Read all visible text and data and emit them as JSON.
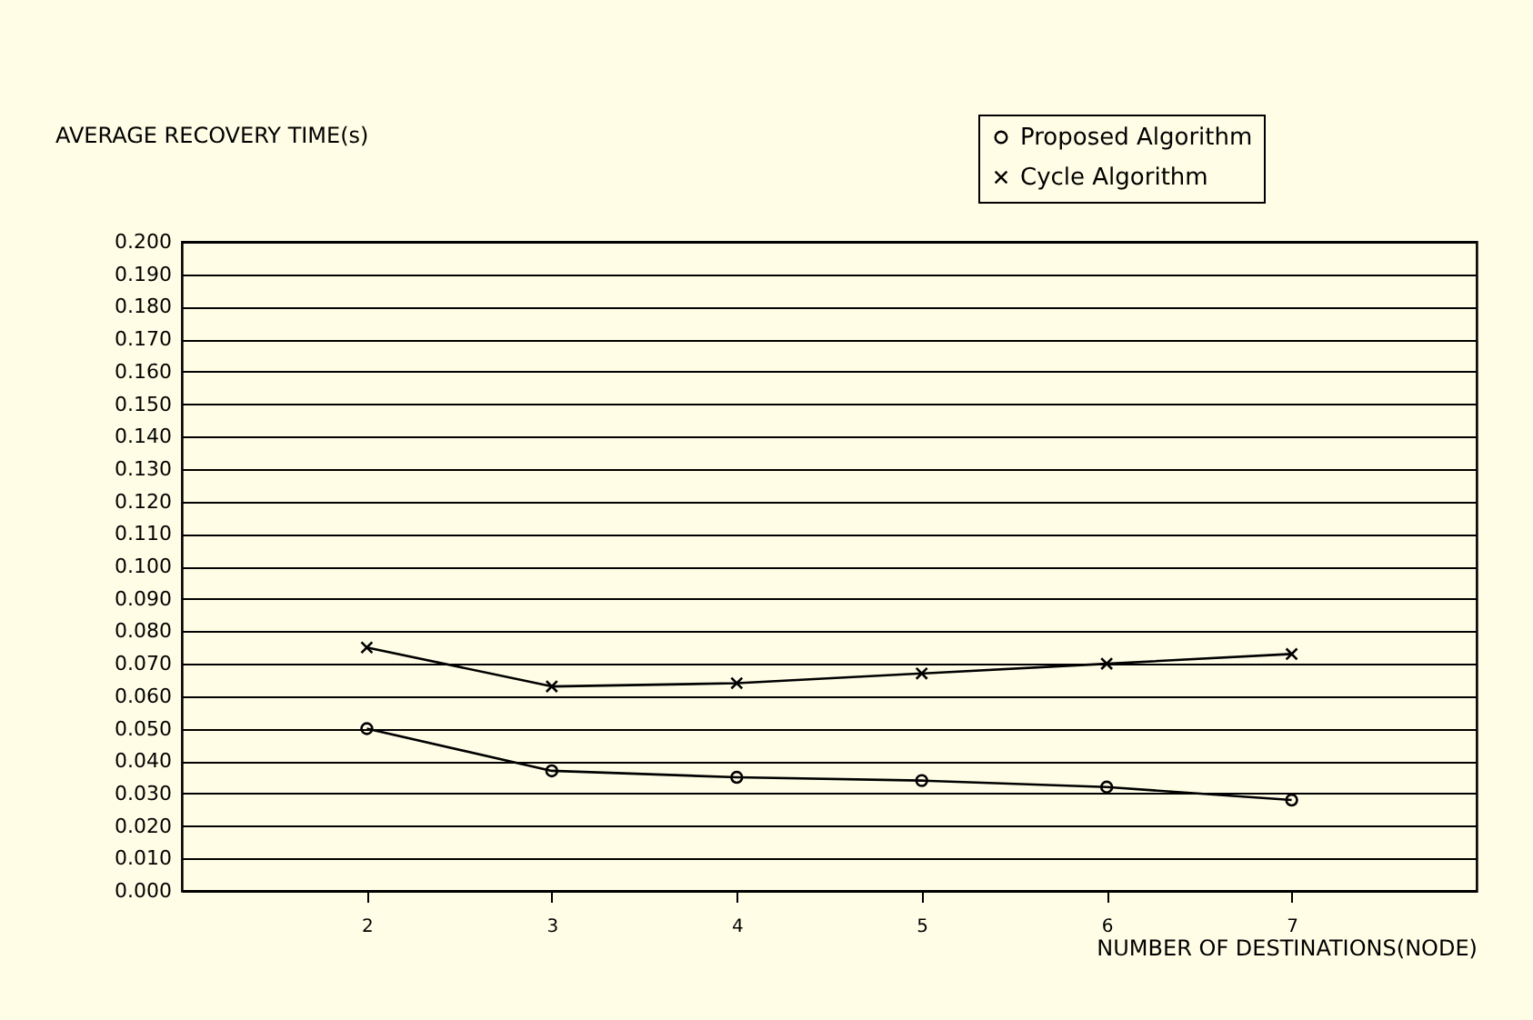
{
  "chart_data": {
    "type": "line",
    "xlabel": "NUMBER OF DESTINATIONS(NODE)",
    "ylabel": "AVERAGE RECOVERY TIME(s)",
    "x": [
      2,
      3,
      4,
      5,
      6,
      7
    ],
    "series": [
      {
        "name": "Proposed Algorithm",
        "color": "#000000",
        "marker": "circle",
        "values": [
          0.05,
          0.037,
          0.035,
          0.034,
          0.032,
          0.028
        ]
      },
      {
        "name": "Cycle Algorithm",
        "color": "#000000",
        "marker": "cross",
        "values": [
          0.075,
          0.063,
          0.064,
          0.067,
          0.07,
          0.073
        ]
      }
    ],
    "xlim": [
      1,
      8
    ],
    "xticks": [
      2,
      3,
      4,
      5,
      6,
      7
    ],
    "ylim": [
      0,
      0.2
    ],
    "yticks": [
      {
        "value": 0,
        "label": "0.000"
      },
      {
        "value": 0.01,
        "label": "0.010"
      },
      {
        "value": 0.02,
        "label": "0.020"
      },
      {
        "value": 0.03,
        "label": "0.030"
      },
      {
        "value": 0.04,
        "label": "0.040"
      },
      {
        "value": 0.05,
        "label": "0.050"
      },
      {
        "value": 0.06,
        "label": "0.060"
      },
      {
        "value": 0.07,
        "label": "0.070"
      },
      {
        "value": 0.08,
        "label": "0.080"
      },
      {
        "value": 0.09,
        "label": "0.090"
      },
      {
        "value": 0.1,
        "label": "0.100"
      },
      {
        "value": 0.11,
        "label": "0.110"
      },
      {
        "value": 0.12,
        "label": "0.120"
      },
      {
        "value": 0.13,
        "label": "0.130"
      },
      {
        "value": 0.14,
        "label": "0.140"
      },
      {
        "value": 0.15,
        "label": "0.150"
      },
      {
        "value": 0.16,
        "label": "0.160"
      },
      {
        "value": 0.17,
        "label": "0.170"
      },
      {
        "value": 0.18,
        "label": "0.180"
      },
      {
        "value": 0.19,
        "label": "0.190"
      },
      {
        "value": 0.2,
        "label": "0.200"
      }
    ],
    "grid": "y",
    "legend": "top right"
  }
}
